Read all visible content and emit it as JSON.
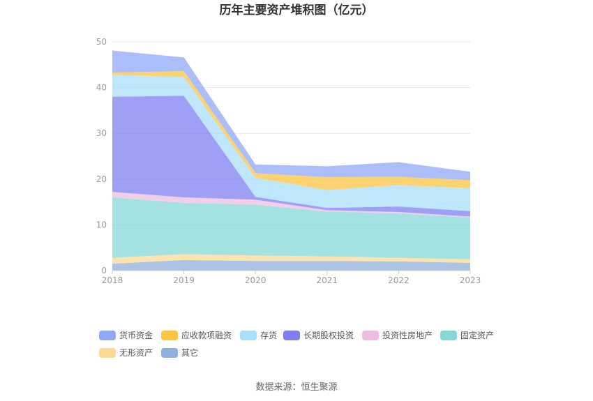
{
  "chart_data": {
    "type": "area",
    "stacked": true,
    "title": "历年主要资产堆积图（亿元）",
    "source": "数据来源：恒生聚源",
    "x": [
      "2018",
      "2019",
      "2020",
      "2021",
      "2022",
      "2023"
    ],
    "ylim": [
      0,
      50
    ],
    "yticks": [
      "0",
      "10",
      "20",
      "30",
      "40",
      "50"
    ],
    "grid": true,
    "legend_position": "bottom",
    "series": [
      {
        "name": "其它",
        "color": "#8fb0dc",
        "values": [
          1.5,
          2.3,
          2.1,
          2.1,
          2.0,
          1.7
        ]
      },
      {
        "name": "无形资产",
        "color": "#fcd992",
        "values": [
          1.3,
          1.3,
          1.2,
          1.0,
          0.8,
          0.8
        ]
      },
      {
        "name": "固定资产",
        "color": "#86d8d8",
        "values": [
          13.2,
          11.2,
          11.1,
          9.8,
          9.7,
          9.1
        ]
      },
      {
        "name": "投资性房地产",
        "color": "#eebee0",
        "values": [
          1.2,
          1.2,
          1.1,
          0.3,
          0.3,
          0.2
        ]
      },
      {
        "name": "长期股权投资",
        "color": "#7f7ff2",
        "values": [
          20.8,
          22.2,
          0.6,
          0.5,
          1.2,
          1.2
        ]
      },
      {
        "name": "存货",
        "color": "#a8dffa",
        "values": [
          4.8,
          4.1,
          4.2,
          3.9,
          4.7,
          5.0
        ]
      },
      {
        "name": "应收款项融资",
        "color": "#fcc443",
        "values": [
          0.5,
          1.3,
          1.0,
          2.8,
          1.8,
          1.8
        ]
      },
      {
        "name": "货币资金",
        "color": "#8fa8f8",
        "values": [
          4.8,
          3.0,
          1.9,
          2.4,
          3.2,
          1.8
        ]
      }
    ],
    "legend_order": [
      "货币资金",
      "应收款项融资",
      "存货",
      "长期股权投资",
      "投资性房地产",
      "固定资产",
      "无形资产",
      "其它"
    ]
  }
}
